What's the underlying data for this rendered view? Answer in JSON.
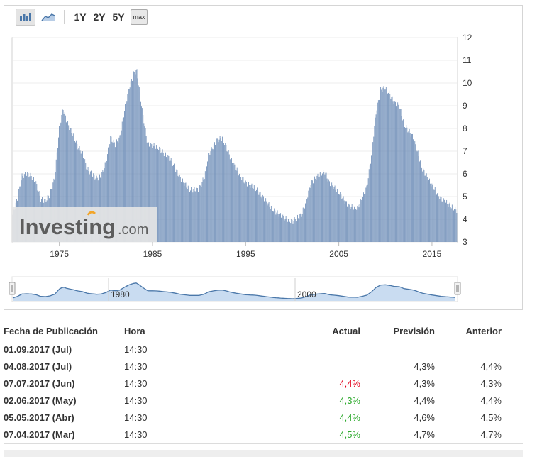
{
  "toolbar": {
    "chart_type_bar_icon": "bar-chart-icon",
    "chart_type_area_icon": "area-chart-icon",
    "ranges": [
      "1Y",
      "2Y",
      "5Y"
    ],
    "max_label": "max"
  },
  "watermark": {
    "brand": "Investing",
    "suffix": ".com"
  },
  "colors": {
    "bar": "#6b8bb6",
    "navigator_line": "#4a77a9",
    "navigator_fill": "#c9dcf1",
    "red": "#e2001a",
    "green": "#2daa2d"
  },
  "chart_data": {
    "type": "bar",
    "x_range": [
      1970,
      2017.67
    ],
    "ylim": [
      3,
      12
    ],
    "y_ticks": [
      "12",
      "11",
      "10",
      "9",
      "8",
      "7",
      "6",
      "5",
      "4",
      "3"
    ],
    "x_tick_labels": [
      "1975",
      "1985",
      "1995",
      "2005",
      "2015"
    ],
    "navigator_labels": [
      "1980",
      "2000"
    ],
    "keyframes": [
      [
        1970.0,
        4.2
      ],
      [
        1970.5,
        4.9
      ],
      [
        1971.0,
        5.9
      ],
      [
        1971.5,
        6.0
      ],
      [
        1972.0,
        5.9
      ],
      [
        1972.5,
        5.6
      ],
      [
        1973.0,
        4.9
      ],
      [
        1973.5,
        4.8
      ],
      [
        1974.0,
        5.1
      ],
      [
        1974.5,
        5.8
      ],
      [
        1975.0,
        8.0
      ],
      [
        1975.4,
        8.9
      ],
      [
        1975.8,
        8.3
      ],
      [
        1976.5,
        7.7
      ],
      [
        1977.0,
        7.2
      ],
      [
        1977.5,
        6.9
      ],
      [
        1978.0,
        6.2
      ],
      [
        1978.5,
        6.0
      ],
      [
        1979.0,
        5.8
      ],
      [
        1979.5,
        5.9
      ],
      [
        1980.0,
        6.5
      ],
      [
        1980.5,
        7.6
      ],
      [
        1981.0,
        7.3
      ],
      [
        1981.5,
        7.6
      ],
      [
        1982.0,
        8.8
      ],
      [
        1982.5,
        9.8
      ],
      [
        1983.0,
        10.4
      ],
      [
        1983.3,
        10.6
      ],
      [
        1983.7,
        9.4
      ],
      [
        1984.2,
        8.0
      ],
      [
        1984.5,
        7.3
      ],
      [
        1985.5,
        7.2
      ],
      [
        1986.0,
        7.0
      ],
      [
        1987.0,
        6.6
      ],
      [
        1988.0,
        5.8
      ],
      [
        1989.0,
        5.3
      ],
      [
        1990.0,
        5.3
      ],
      [
        1990.6,
        5.9
      ],
      [
        1991.0,
        6.8
      ],
      [
        1991.5,
        7.2
      ],
      [
        1992.0,
        7.5
      ],
      [
        1992.5,
        7.6
      ],
      [
        1993.0,
        7.1
      ],
      [
        1993.5,
        6.6
      ],
      [
        1994.0,
        6.2
      ],
      [
        1994.5,
        5.9
      ],
      [
        1995.0,
        5.6
      ],
      [
        1996.0,
        5.4
      ],
      [
        1997.0,
        4.9
      ],
      [
        1998.0,
        4.4
      ],
      [
        1999.0,
        4.1
      ],
      [
        2000.0,
        3.9
      ],
      [
        2001.0,
        4.2
      ],
      [
        2001.5,
        4.8
      ],
      [
        2002.0,
        5.6
      ],
      [
        2003.0,
        6.0
      ],
      [
        2003.5,
        6.1
      ],
      [
        2004.0,
        5.6
      ],
      [
        2005.0,
        5.2
      ],
      [
        2006.0,
        4.6
      ],
      [
        2007.0,
        4.5
      ],
      [
        2007.5,
        4.9
      ],
      [
        2008.0,
        5.4
      ],
      [
        2008.5,
        6.8
      ],
      [
        2009.0,
        8.7
      ],
      [
        2009.5,
        9.7
      ],
      [
        2010.0,
        9.8
      ],
      [
        2010.5,
        9.5
      ],
      [
        2011.0,
        9.1
      ],
      [
        2011.5,
        9.0
      ],
      [
        2012.0,
        8.2
      ],
      [
        2013.0,
        7.6
      ],
      [
        2014.0,
        6.2
      ],
      [
        2015.0,
        5.5
      ],
      [
        2016.0,
        4.9
      ],
      [
        2017.0,
        4.6
      ],
      [
        2017.67,
        4.4
      ]
    ]
  },
  "table": {
    "headers": {
      "date": "Fecha de Publicación",
      "time": "Hora",
      "actual": "Actual",
      "forecast": "Previsión",
      "previous": "Anterior"
    },
    "rows": [
      {
        "date": "01.09.2017 (Jul)",
        "time": "14:30",
        "actual": "",
        "actual_color": "",
        "forecast": "",
        "previous": ""
      },
      {
        "date": "04.08.2017 (Jul)",
        "time": "14:30",
        "actual": "",
        "actual_color": "",
        "forecast": "4,3%",
        "previous": "4,4%"
      },
      {
        "date": "07.07.2017 (Jun)",
        "time": "14:30",
        "actual": "4,4%",
        "actual_color": "red",
        "forecast": "4,3%",
        "previous": "4,3%"
      },
      {
        "date": "02.06.2017 (May)",
        "time": "14:30",
        "actual": "4,3%",
        "actual_color": "green",
        "forecast": "4,4%",
        "previous": "4,4%"
      },
      {
        "date": "05.05.2017 (Abr)",
        "time": "14:30",
        "actual": "4,4%",
        "actual_color": "green",
        "forecast": "4,6%",
        "previous": "4,5%"
      },
      {
        "date": "07.04.2017 (Mar)",
        "time": "14:30",
        "actual": "4,5%",
        "actual_color": "green",
        "forecast": "4,7%",
        "previous": "4,7%"
      }
    ]
  }
}
